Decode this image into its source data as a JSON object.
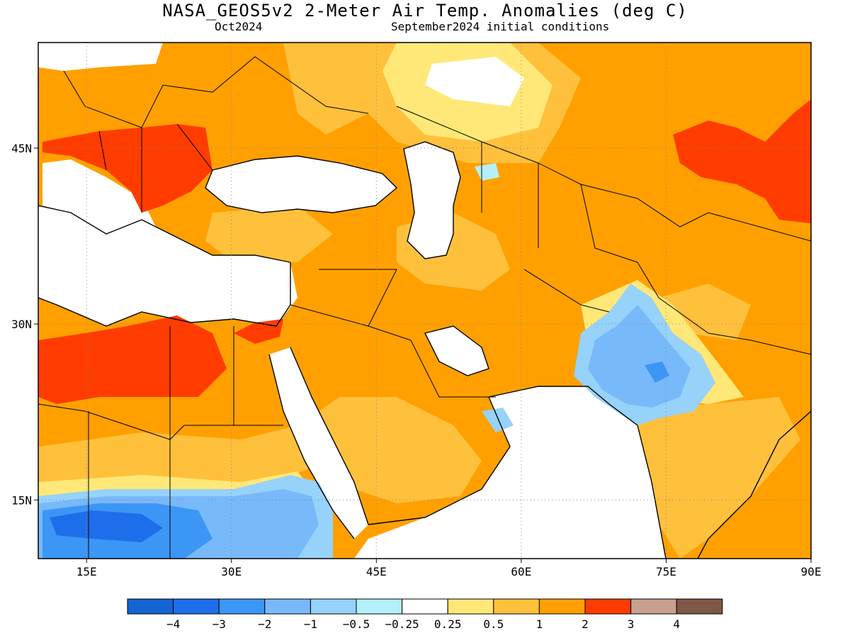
{
  "title": "NASA_GEOS5v2 2-Meter Air Temp. Anomalies (deg C)",
  "subtitle_left": "Oct2024",
  "subtitle_right": "September2024 initial conditions",
  "map": {
    "lon_range": [
      10,
      90
    ],
    "lat_range": [
      10,
      54
    ],
    "x_ticks": [
      {
        "value": 15,
        "label": "15E"
      },
      {
        "value": 30,
        "label": "30E"
      },
      {
        "value": 45,
        "label": "45E"
      },
      {
        "value": 60,
        "label": "60E"
      },
      {
        "value": 75,
        "label": "75E"
      },
      {
        "value": 90,
        "label": "90E"
      }
    ],
    "y_ticks": [
      {
        "value": 45,
        "label": "45N"
      },
      {
        "value": 30,
        "label": "30N"
      },
      {
        "value": 15,
        "label": "15N"
      }
    ],
    "grid": "dotted"
  },
  "colorbar": {
    "colors": [
      "#1464d2",
      "#1e6eeb",
      "#3c96f5",
      "#78b9fa",
      "#96d2fa",
      "#b4f0fa",
      "#ffffff",
      "#ffe878",
      "#ffc03c",
      "#ffa000",
      "#ff3c00",
      "#c8a090",
      "#7d5846"
    ],
    "labels": [
      "−4",
      "−3",
      "−2",
      "−1",
      "−0.5",
      "−0.25",
      "0.25",
      "0.5",
      "1",
      "2",
      "3",
      "4"
    ]
  },
  "palette": {
    "orange": "#ffa000",
    "light_orange": "#ffc03c",
    "yellow": "#ffe878",
    "red": "#ff3c00",
    "blue": "#78b9fa",
    "dark_blue": "#3c96f5",
    "deep_blue": "#1e6eeb",
    "pale_blue": "#b4f0fa"
  }
}
